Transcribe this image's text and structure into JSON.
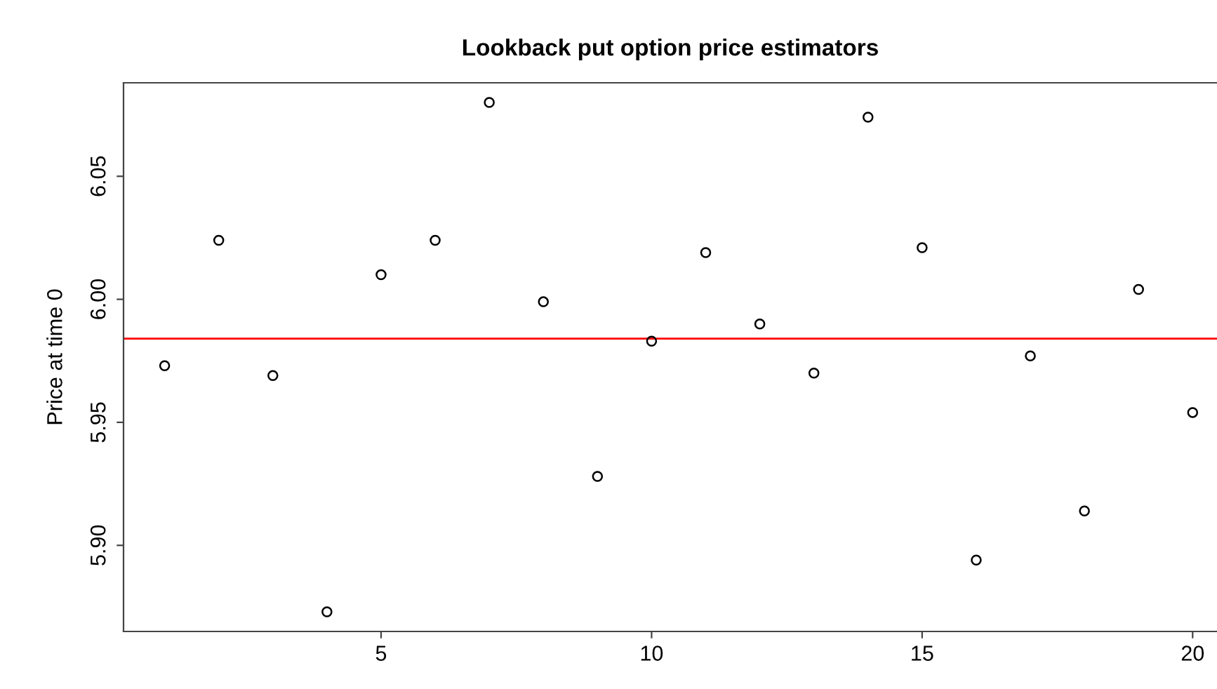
{
  "chart_data": {
    "type": "scatter",
    "title": "Lookback put option price estimators",
    "ylabel": "Price at time 0",
    "x": [
      1,
      2,
      3,
      4,
      5,
      6,
      7,
      8,
      9,
      10,
      11,
      12,
      13,
      14,
      15,
      16,
      17,
      18,
      19,
      20
    ],
    "values": [
      5.973,
      6.024,
      5.969,
      5.873,
      6.01,
      6.024,
      6.08,
      5.999,
      5.928,
      5.983,
      6.019,
      5.99,
      5.97,
      6.074,
      6.021,
      5.894,
      5.977,
      5.914,
      6.004,
      5.954
    ],
    "color": "#000000",
    "marker": "circle",
    "xlim": [
      0.24,
      20.45
    ],
    "xticks": [
      5,
      10,
      15,
      20
    ],
    "ylim": [
      5.865,
      6.088
    ],
    "yticks": [
      {
        "value": 5.9,
        "label": "5.90"
      },
      5.95,
      {
        "value": 6,
        "label": "6.00"
      },
      6.05
    ],
    "ref_lines": [
      {
        "axis": "y",
        "value": 5.984,
        "color": "#ff0000"
      }
    ],
    "grid": false,
    "legend": false
  }
}
